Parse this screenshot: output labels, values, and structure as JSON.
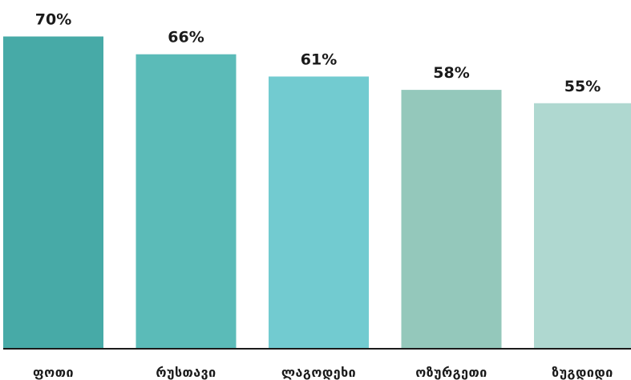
{
  "chart_data": {
    "type": "bar",
    "categories": [
      "ფოთი",
      "რუსთავი",
      "ლაგოდეხი",
      "ოზურგეთი",
      "ზუგდიდი"
    ],
    "values": [
      70,
      66,
      61,
      58,
      55
    ],
    "value_labels": [
      "70%",
      "66%",
      "61%",
      "58%",
      "55%"
    ],
    "colors": [
      "#47aaa7",
      "#5bbbb8",
      "#72cbd0",
      "#94c8bb",
      "#afd8d0"
    ],
    "ylim": [
      0,
      100
    ],
    "title": "",
    "xlabel": "",
    "ylabel": "",
    "grid": false,
    "legend": "none",
    "axis_color": "#1a1a1a"
  }
}
